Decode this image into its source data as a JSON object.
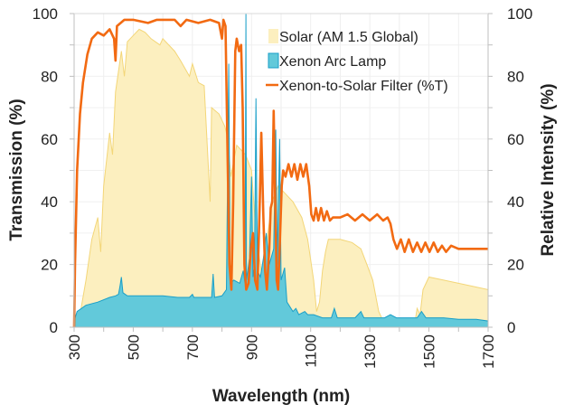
{
  "chart_data": {
    "type": "area",
    "xlabel": "Wavelength (nm)",
    "ylabel": "Transmission (%)",
    "y2label": "Relative Intensity (%)",
    "xlim": [
      300,
      1700
    ],
    "ylim": [
      0,
      100
    ],
    "y2lim": [
      0,
      100
    ],
    "xticks": [
      300,
      500,
      700,
      900,
      1100,
      1300,
      1500,
      1700
    ],
    "yticks": [
      0,
      20,
      40,
      60,
      80,
      100
    ],
    "grid": true,
    "legend_position": "top-right",
    "series": [
      {
        "name": "Solar (AM 1.5 Global)",
        "kind": "area",
        "axis": "right",
        "fill": "#fcefbf",
        "stroke": "#f3d678",
        "points": [
          [
            300,
            0
          ],
          [
            320,
            4
          ],
          [
            340,
            15
          ],
          [
            360,
            28
          ],
          [
            380,
            35
          ],
          [
            390,
            24
          ],
          [
            400,
            45
          ],
          [
            420,
            62
          ],
          [
            430,
            55
          ],
          [
            440,
            75
          ],
          [
            460,
            88
          ],
          [
            470,
            80
          ],
          [
            480,
            91
          ],
          [
            500,
            93
          ],
          [
            520,
            95
          ],
          [
            540,
            94
          ],
          [
            560,
            92
          ],
          [
            590,
            90
          ],
          [
            600,
            92
          ],
          [
            640,
            88
          ],
          [
            660,
            85
          ],
          [
            690,
            80
          ],
          [
            700,
            84
          ],
          [
            720,
            78
          ],
          [
            740,
            77
          ],
          [
            760,
            40
          ],
          [
            765,
            70
          ],
          [
            790,
            68
          ],
          [
            810,
            64
          ],
          [
            820,
            60
          ],
          [
            830,
            48
          ],
          [
            850,
            58
          ],
          [
            880,
            55
          ],
          [
            900,
            50
          ],
          [
            915,
            30
          ],
          [
            930,
            20
          ],
          [
            940,
            12
          ],
          [
            955,
            30
          ],
          [
            970,
            40
          ],
          [
            990,
            45
          ],
          [
            1010,
            43
          ],
          [
            1040,
            40
          ],
          [
            1070,
            35
          ],
          [
            1090,
            28
          ],
          [
            1110,
            15
          ],
          [
            1120,
            5
          ],
          [
            1130,
            8
          ],
          [
            1140,
            18
          ],
          [
            1150,
            24
          ],
          [
            1160,
            28
          ],
          [
            1200,
            28
          ],
          [
            1240,
            27
          ],
          [
            1270,
            25
          ],
          [
            1290,
            20
          ],
          [
            1310,
            15
          ],
          [
            1330,
            5
          ],
          [
            1345,
            2
          ],
          [
            1400,
            0
          ],
          [
            1450,
            0
          ],
          [
            1460,
            6
          ],
          [
            1470,
            4
          ],
          [
            1480,
            12
          ],
          [
            1500,
            16
          ],
          [
            1550,
            15
          ],
          [
            1600,
            14
          ],
          [
            1650,
            13
          ],
          [
            1700,
            12
          ]
        ]
      },
      {
        "name": "Xenon Arc Lamp",
        "kind": "area",
        "axis": "right",
        "fill": "#62c9da",
        "stroke": "#1a9fc8",
        "points": [
          [
            300,
            2
          ],
          [
            310,
            5
          ],
          [
            340,
            7
          ],
          [
            380,
            8
          ],
          [
            420,
            9.5
          ],
          [
            440,
            10
          ],
          [
            450,
            10.5
          ],
          [
            455,
            13
          ],
          [
            460,
            16
          ],
          [
            465,
            11
          ],
          [
            480,
            10
          ],
          [
            520,
            10
          ],
          [
            600,
            10
          ],
          [
            650,
            9.5
          ],
          [
            690,
            9.5
          ],
          [
            700,
            10.5
          ],
          [
            705,
            9.5
          ],
          [
            740,
            9.5
          ],
          [
            765,
            9.5
          ],
          [
            770,
            17
          ],
          [
            775,
            9.5
          ],
          [
            800,
            10
          ],
          [
            815,
            12
          ],
          [
            823,
            84
          ],
          [
            828,
            14
          ],
          [
            840,
            15
          ],
          [
            860,
            14
          ],
          [
            872,
            18
          ],
          [
            878,
            14
          ],
          [
            881,
            100
          ],
          [
            883,
            15
          ],
          [
            893,
            22
          ],
          [
            900,
            48
          ],
          [
            905,
            16
          ],
          [
            910,
            20
          ],
          [
            915,
            73
          ],
          [
            920,
            18
          ],
          [
            930,
            16
          ],
          [
            940,
            22
          ],
          [
            950,
            30
          ],
          [
            960,
            20
          ],
          [
            975,
            25
          ],
          [
            982,
            63
          ],
          [
            987,
            20
          ],
          [
            995,
            60
          ],
          [
            1000,
            15
          ],
          [
            1012,
            19
          ],
          [
            1020,
            8
          ],
          [
            1040,
            5
          ],
          [
            1050,
            6
          ],
          [
            1060,
            4
          ],
          [
            1080,
            5
          ],
          [
            1090,
            4
          ],
          [
            1110,
            4
          ],
          [
            1140,
            3
          ],
          [
            1170,
            3
          ],
          [
            1180,
            6
          ],
          [
            1190,
            3
          ],
          [
            1250,
            3
          ],
          [
            1270,
            5
          ],
          [
            1280,
            3
          ],
          [
            1350,
            3
          ],
          [
            1370,
            4
          ],
          [
            1390,
            3
          ],
          [
            1460,
            3
          ],
          [
            1475,
            5
          ],
          [
            1490,
            3
          ],
          [
            1550,
            3
          ],
          [
            1600,
            2.5
          ],
          [
            1660,
            2.5
          ],
          [
            1700,
            2
          ]
        ]
      },
      {
        "name": "Xenon-to-Solar Filter (%T)",
        "kind": "line",
        "axis": "left",
        "stroke": "#f26a12",
        "points": [
          [
            300,
            0
          ],
          [
            303,
            20
          ],
          [
            310,
            50
          ],
          [
            320,
            68
          ],
          [
            330,
            78
          ],
          [
            345,
            87
          ],
          [
            360,
            92
          ],
          [
            380,
            94
          ],
          [
            400,
            93
          ],
          [
            420,
            95
          ],
          [
            435,
            92
          ],
          [
            440,
            85
          ],
          [
            445,
            96
          ],
          [
            470,
            98
          ],
          [
            500,
            98
          ],
          [
            550,
            97
          ],
          [
            580,
            98
          ],
          [
            600,
            98
          ],
          [
            640,
            98
          ],
          [
            660,
            96
          ],
          [
            680,
            98
          ],
          [
            720,
            97
          ],
          [
            760,
            98
          ],
          [
            790,
            97
          ],
          [
            800,
            92
          ],
          [
            805,
            98
          ],
          [
            812,
            96
          ],
          [
            818,
            60
          ],
          [
            825,
            20
          ],
          [
            832,
            12
          ],
          [
            838,
            40
          ],
          [
            845,
            88
          ],
          [
            850,
            92
          ],
          [
            858,
            88
          ],
          [
            865,
            90
          ],
          [
            870,
            70
          ],
          [
            876,
            20
          ],
          [
            882,
            12
          ],
          [
            890,
            14
          ],
          [
            898,
            25
          ],
          [
            905,
            30
          ],
          [
            912,
            15
          ],
          [
            920,
            12
          ],
          [
            928,
            40
          ],
          [
            933,
            62
          ],
          [
            940,
            35
          ],
          [
            946,
            18
          ],
          [
            952,
            12
          ],
          [
            960,
            25
          ],
          [
            965,
            38
          ],
          [
            970,
            40
          ],
          [
            975,
            69
          ],
          [
            980,
            40
          ],
          [
            985,
            15
          ],
          [
            990,
            12
          ],
          [
            995,
            25
          ],
          [
            1002,
            45
          ],
          [
            1007,
            50
          ],
          [
            1015,
            48
          ],
          [
            1025,
            52
          ],
          [
            1035,
            48
          ],
          [
            1045,
            52
          ],
          [
            1055,
            47
          ],
          [
            1065,
            52
          ],
          [
            1075,
            48
          ],
          [
            1085,
            52
          ],
          [
            1095,
            45
          ],
          [
            1102,
            36
          ],
          [
            1110,
            34
          ],
          [
            1118,
            38
          ],
          [
            1126,
            34
          ],
          [
            1135,
            38
          ],
          [
            1145,
            34
          ],
          [
            1155,
            37
          ],
          [
            1165,
            34
          ],
          [
            1175,
            35
          ],
          [
            1200,
            35
          ],
          [
            1225,
            36
          ],
          [
            1250,
            34
          ],
          [
            1275,
            36
          ],
          [
            1300,
            34
          ],
          [
            1325,
            36
          ],
          [
            1345,
            34
          ],
          [
            1360,
            35
          ],
          [
            1370,
            33
          ],
          [
            1380,
            28
          ],
          [
            1392,
            25
          ],
          [
            1405,
            28
          ],
          [
            1418,
            24
          ],
          [
            1432,
            28
          ],
          [
            1446,
            24
          ],
          [
            1460,
            27
          ],
          [
            1474,
            24
          ],
          [
            1488,
            27
          ],
          [
            1502,
            24
          ],
          [
            1516,
            27
          ],
          [
            1530,
            24
          ],
          [
            1544,
            26
          ],
          [
            1558,
            24
          ],
          [
            1575,
            26
          ],
          [
            1600,
            25
          ],
          [
            1650,
            25
          ],
          [
            1700,
            25
          ]
        ]
      }
    ]
  }
}
